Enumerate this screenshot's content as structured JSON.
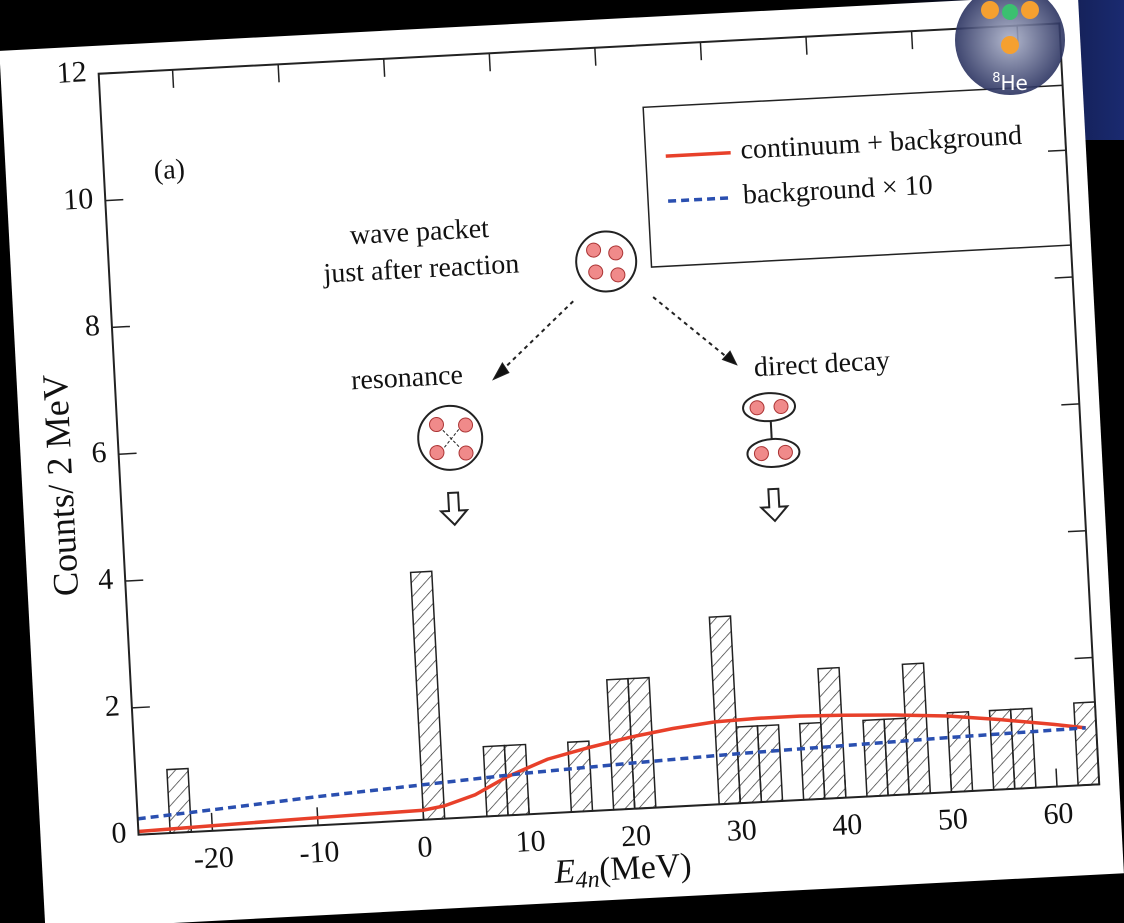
{
  "chart_data": {
    "type": "histogram",
    "panel_label": "(a)",
    "ylabel": "Counts/ 2 MeV",
    "xlabel": {
      "symbol": "E",
      "subscript": "4n",
      "unit": "(MeV)"
    },
    "bins": [
      -26,
      -24,
      -22,
      -20,
      -18,
      -16,
      -14,
      -12,
      -10,
      -8,
      -6,
      -4,
      -2,
      0,
      2,
      4,
      6,
      8,
      10,
      12,
      14,
      16,
      18,
      20,
      22,
      24,
      26,
      28,
      30,
      32,
      34,
      36,
      38,
      40,
      42,
      44,
      46,
      48,
      50,
      52,
      54,
      56,
      58,
      60,
      62,
      64
    ],
    "counts": [
      0,
      1,
      0,
      0,
      0,
      0,
      0,
      0,
      0,
      0,
      0,
      0,
      0,
      3.9,
      0,
      0,
      1.1,
      1.1,
      0,
      0,
      1.1,
      0,
      2.05,
      2.05,
      0,
      0,
      0,
      2.95,
      1.2,
      1.2,
      0,
      1.2,
      2.05,
      0,
      1.2,
      1.2,
      2.05,
      0,
      1.25,
      0,
      1.25,
      1.25,
      0,
      0,
      1.3
    ],
    "series": [
      {
        "name": "continuum + background",
        "color": "#e8402a",
        "dash": false,
        "x": [
          -27,
          -20,
          -10,
          0,
          2,
          5,
          8,
          12,
          16,
          20,
          24,
          28,
          32,
          36,
          40,
          45,
          50,
          55,
          60,
          63
        ],
        "values": [
          0.05,
          0.08,
          0.12,
          0.15,
          0.2,
          0.35,
          0.6,
          0.85,
          1.0,
          1.13,
          1.23,
          1.3,
          1.32,
          1.32,
          1.3,
          1.26,
          1.2,
          1.1,
          0.98,
          0.9
        ]
      },
      {
        "name": "background × 10",
        "color": "#2a4fb0",
        "dash": true,
        "x": [
          -27,
          -20,
          -10,
          0,
          10,
          20,
          30,
          40,
          50,
          63
        ],
        "values": [
          0.25,
          0.33,
          0.45,
          0.55,
          0.65,
          0.72,
          0.78,
          0.82,
          0.86,
          0.9
        ]
      }
    ],
    "xlim": [
      -27,
      64
    ],
    "xticks": [
      -20,
      -10,
      0,
      10,
      20,
      30,
      40,
      50,
      60
    ],
    "ylim": [
      0,
      12
    ],
    "yticks": [
      0,
      2,
      4,
      6,
      8,
      10,
      12
    ],
    "annotations": {
      "wave_packet": [
        "wave packet",
        "just after reaction"
      ],
      "resonance": "resonance",
      "direct_decay": "direct decay"
    },
    "nucleus": {
      "mass": "8",
      "element": "He"
    }
  }
}
